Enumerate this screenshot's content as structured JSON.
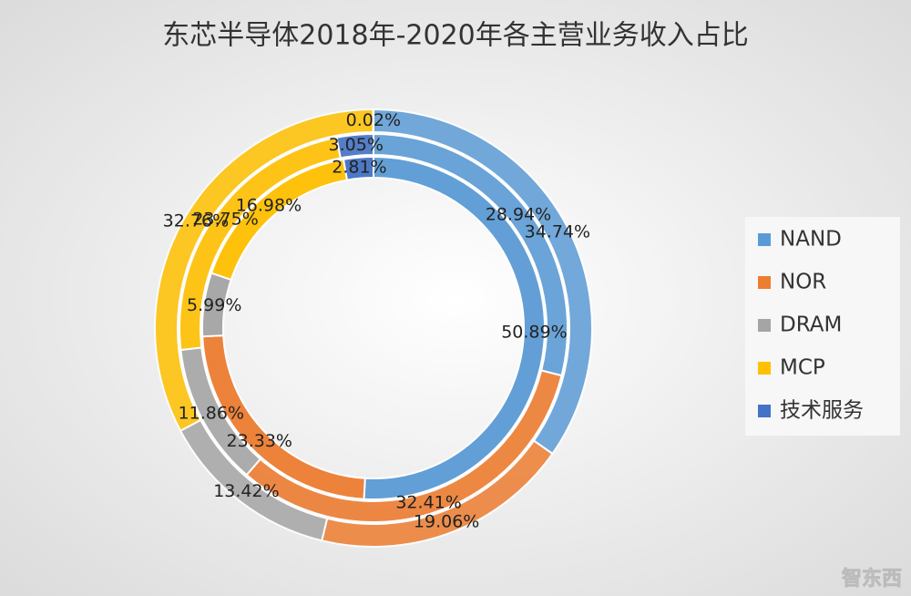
{
  "chart_data": {
    "type": "multi-donut",
    "title": "东芯半导体2018年-2020年各主营业务收入占比",
    "categories": [
      "NAND",
      "NOR",
      "DRAM",
      "MCP",
      "技术服务"
    ],
    "colors": [
      "#5b9bd5",
      "#ed7d31",
      "#a5a5a5",
      "#ffc000",
      "#4472c4"
    ],
    "series": [
      {
        "values": [
          34.74,
          19.06,
          13.42,
          32.76,
          0.02
        ],
        "value_labels": [
          "34.74%",
          "19.06%",
          "13.42%",
          "32.76%",
          "0.02%"
        ]
      },
      {
        "values": [
          28.94,
          32.41,
          11.86,
          23.75,
          3.05
        ],
        "value_labels": [
          "28.94%",
          "32.41%",
          "11.86%",
          "23.75%",
          "3.05%"
        ]
      },
      {
        "values": [
          50.89,
          23.33,
          5.99,
          16.98,
          2.81
        ],
        "value_labels": [
          "50.89%",
          "23.33%",
          "5.99%",
          "16.98%",
          "2.81%"
        ]
      }
    ],
    "legend": "right"
  },
  "watermark": "智东西"
}
